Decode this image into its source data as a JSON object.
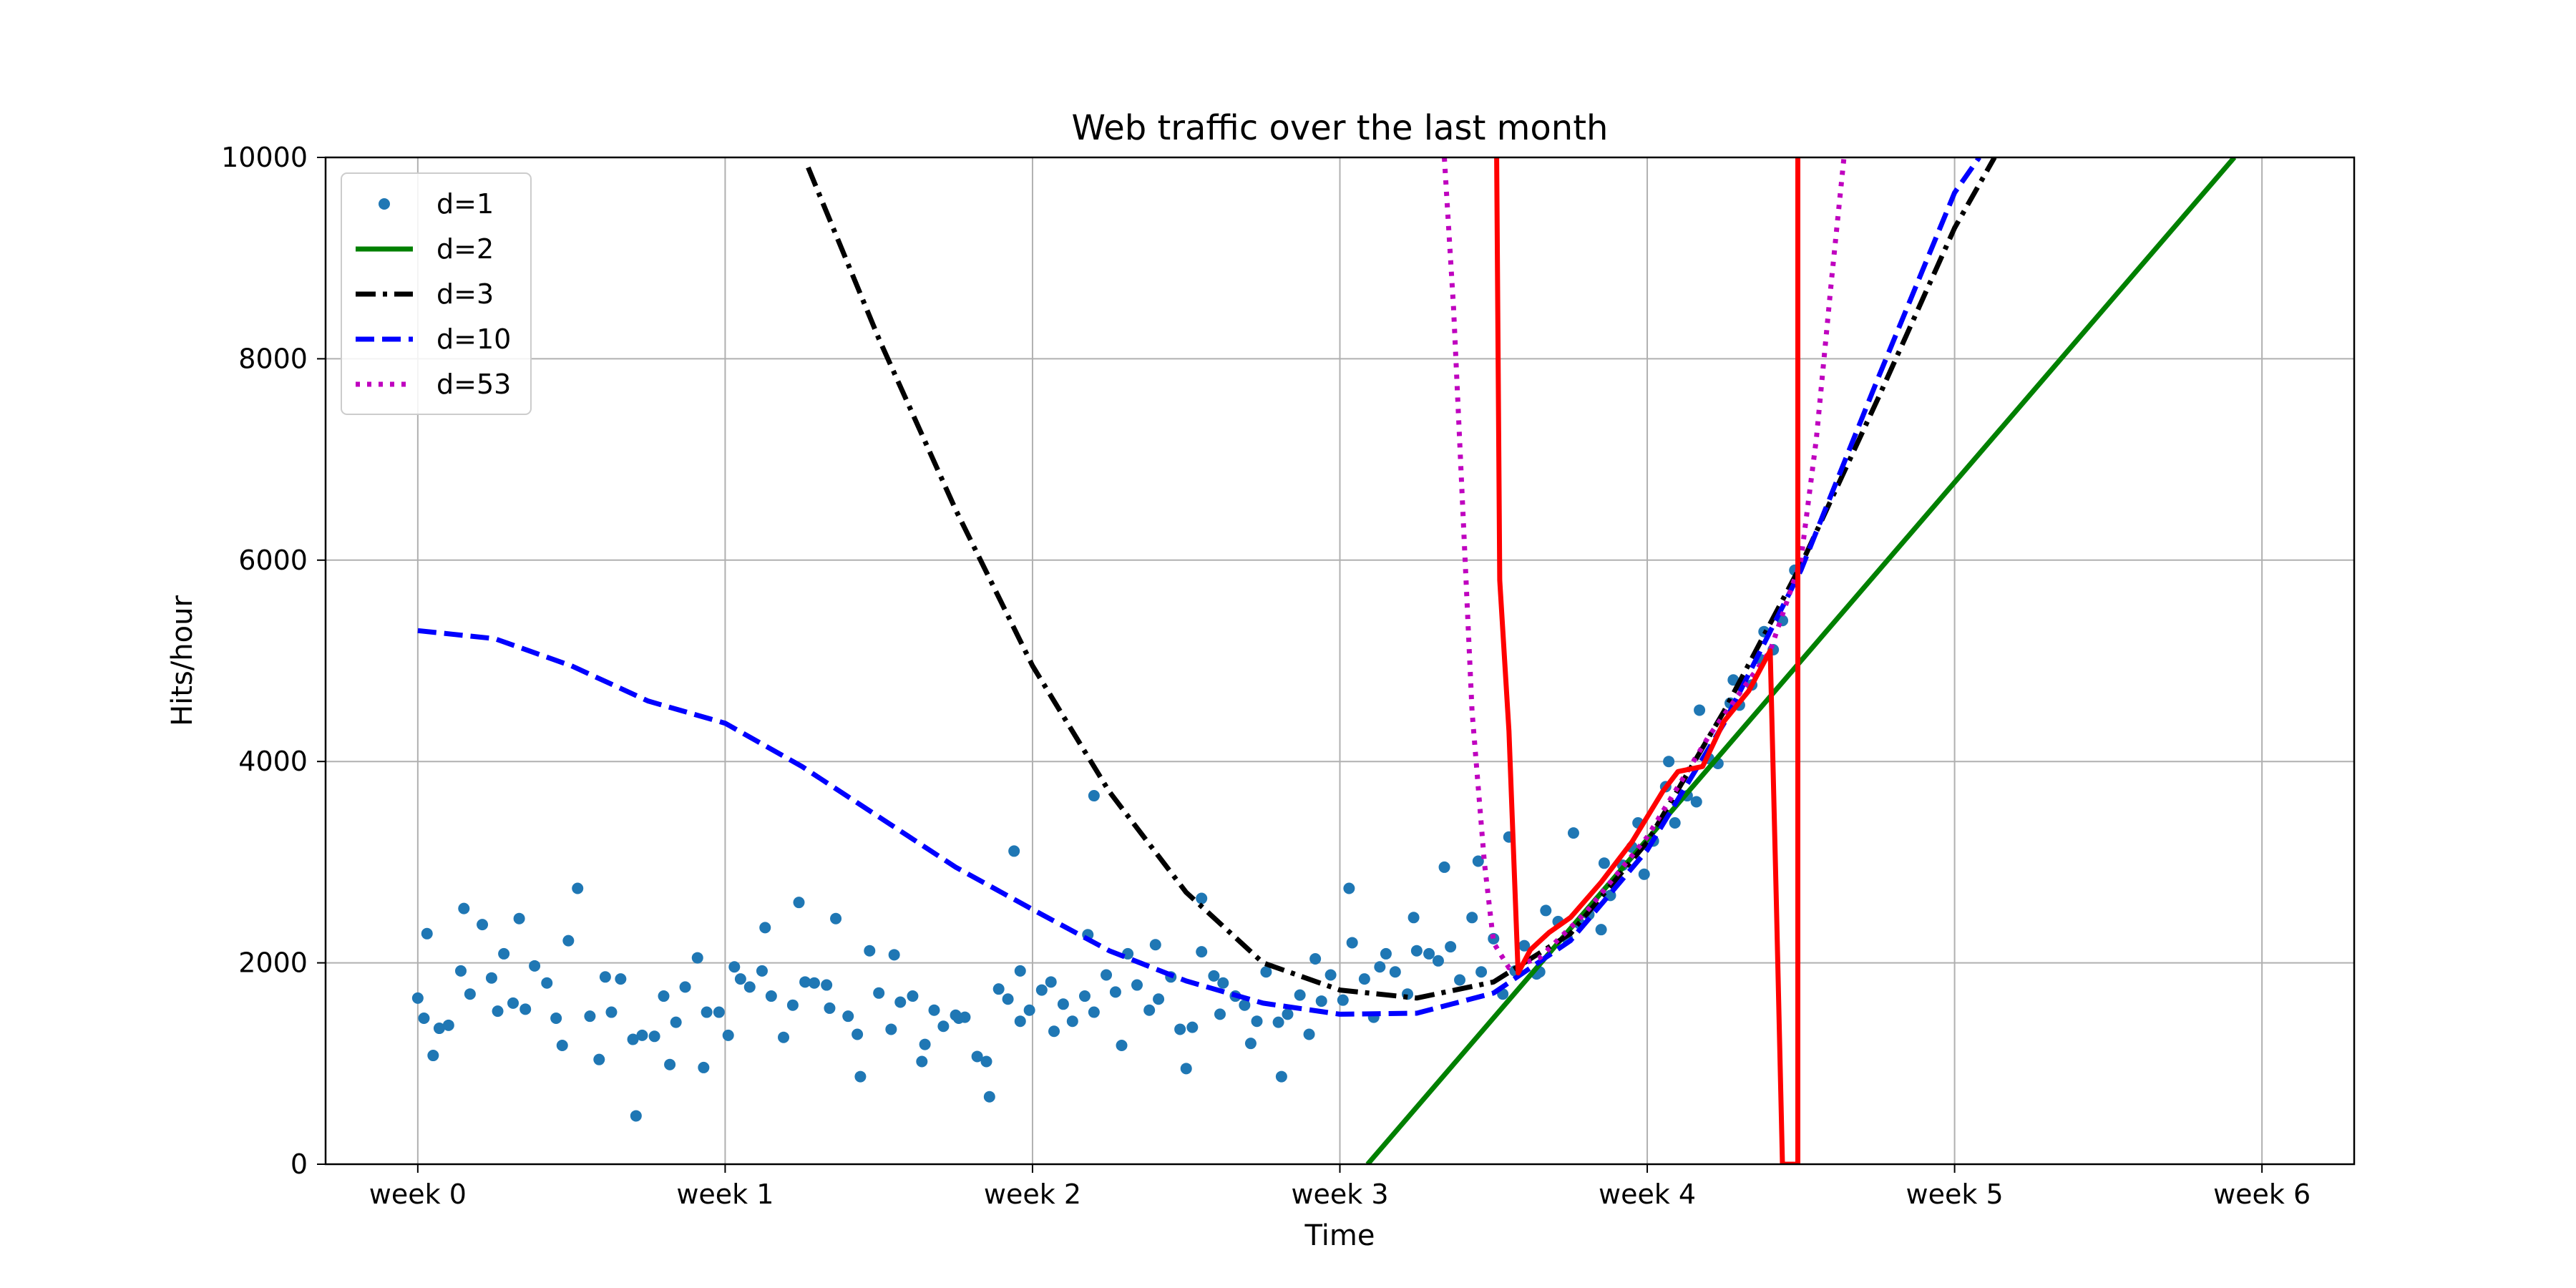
{
  "chart_data": {
    "type": "scatter",
    "title": "Web traffic over the last month",
    "xlabel": "Time",
    "ylabel": "Hits/hour",
    "xlim": [
      -0.3,
      6.3
    ],
    "ylim": [
      0,
      10000
    ],
    "x_ticks": [
      0,
      1,
      2,
      3,
      4,
      5,
      6
    ],
    "x_tick_labels": [
      "week 0",
      "week 1",
      "week 2",
      "week 3",
      "week 4",
      "week 5",
      "week 6"
    ],
    "y_ticks": [
      0,
      2000,
      4000,
      6000,
      8000,
      10000
    ],
    "y_tick_labels": [
      "0",
      "2000",
      "4000",
      "6000",
      "8000",
      "10000"
    ],
    "grid": true,
    "legend_position": "top-left",
    "series": [
      {
        "name": "d=1",
        "kind": "scatter",
        "color": "#1f77b4",
        "description": "hourly traffic samples (estimated, one point every ~4 hours)",
        "points": [
          [
            0.0,
            1650
          ],
          [
            0.03,
            2290
          ],
          [
            0.07,
            1350
          ],
          [
            0.1,
            1380
          ],
          [
            0.14,
            1920
          ],
          [
            0.17,
            1690
          ],
          [
            0.21,
            2380
          ],
          [
            0.24,
            1850
          ],
          [
            0.28,
            2090
          ],
          [
            0.31,
            1600
          ],
          [
            0.35,
            1540
          ],
          [
            0.38,
            1970
          ],
          [
            0.42,
            1800
          ],
          [
            0.45,
            1450
          ],
          [
            0.49,
            2220
          ],
          [
            0.52,
            2740
          ],
          [
            0.56,
            1470
          ],
          [
            0.59,
            1040
          ],
          [
            0.63,
            1510
          ],
          [
            0.66,
            1840
          ],
          [
            0.7,
            1240
          ],
          [
            0.73,
            1280
          ],
          [
            0.77,
            1270
          ],
          [
            0.8,
            1670
          ],
          [
            0.84,
            1410
          ],
          [
            0.87,
            1760
          ],
          [
            0.91,
            2050
          ],
          [
            0.94,
            1510
          ],
          [
            0.98,
            1510
          ],
          [
            1.01,
            1280
          ],
          [
            1.05,
            1840
          ],
          [
            1.08,
            1760
          ],
          [
            1.12,
            1920
          ],
          [
            1.15,
            1670
          ],
          [
            1.19,
            1260
          ],
          [
            1.22,
            1580
          ],
          [
            1.26,
            1810
          ],
          [
            1.29,
            1800
          ],
          [
            1.33,
            1780
          ],
          [
            1.36,
            2440
          ],
          [
            1.4,
            1470
          ],
          [
            1.43,
            1290
          ],
          [
            1.47,
            2120
          ],
          [
            1.5,
            1700
          ],
          [
            1.54,
            1340
          ],
          [
            1.57,
            1610
          ],
          [
            1.61,
            1670
          ],
          [
            1.64,
            1020
          ],
          [
            1.68,
            1530
          ],
          [
            1.71,
            1370
          ],
          [
            1.75,
            1480
          ],
          [
            1.78,
            1460
          ],
          [
            1.82,
            1070
          ],
          [
            1.85,
            1020
          ],
          [
            1.89,
            1740
          ],
          [
            1.92,
            1640
          ],
          [
            1.96,
            1920
          ],
          [
            1.99,
            1530
          ],
          [
            2.03,
            1730
          ],
          [
            2.06,
            1810
          ],
          [
            2.1,
            1590
          ],
          [
            2.13,
            1420
          ],
          [
            2.17,
            1670
          ],
          [
            2.2,
            1510
          ],
          [
            2.24,
            1880
          ],
          [
            2.27,
            1710
          ],
          [
            2.31,
            2090
          ],
          [
            2.34,
            1780
          ],
          [
            2.38,
            1530
          ],
          [
            2.41,
            1640
          ],
          [
            2.45,
            1860
          ],
          [
            2.48,
            1340
          ],
          [
            2.52,
            1360
          ],
          [
            2.55,
            2110
          ],
          [
            2.59,
            1870
          ],
          [
            2.62,
            1800
          ],
          [
            2.66,
            1670
          ],
          [
            2.69,
            1580
          ],
          [
            2.73,
            1420
          ],
          [
            2.76,
            1910
          ],
          [
            2.8,
            1410
          ],
          [
            2.83,
            1490
          ],
          [
            2.87,
            1680
          ],
          [
            2.9,
            1290
          ],
          [
            2.94,
            1620
          ],
          [
            2.97,
            1880
          ],
          [
            3.01,
            1630
          ],
          [
            3.04,
            2200
          ],
          [
            3.08,
            1840
          ],
          [
            3.11,
            1460
          ],
          [
            3.15,
            2090
          ],
          [
            3.18,
            1910
          ],
          [
            3.22,
            1690
          ],
          [
            3.25,
            2120
          ],
          [
            3.29,
            2090
          ],
          [
            3.32,
            2020
          ],
          [
            3.36,
            2160
          ],
          [
            3.39,
            1830
          ],
          [
            3.43,
            2450
          ],
          [
            3.46,
            1910
          ],
          [
            3.5,
            2240
          ],
          [
            3.53,
            1690
          ],
          [
            3.57,
            1920
          ],
          [
            3.6,
            2170
          ],
          [
            3.64,
            1890
          ],
          [
            3.67,
            2520
          ],
          [
            3.71,
            2410
          ],
          [
            3.74,
            2240
          ],
          [
            3.78,
            2390
          ],
          [
            3.81,
            2480
          ],
          [
            3.85,
            2330
          ],
          [
            3.88,
            2670
          ],
          [
            3.92,
            2970
          ],
          [
            3.95,
            3150
          ],
          [
            3.99,
            2880
          ],
          [
            4.02,
            3210
          ],
          [
            4.06,
            3750
          ],
          [
            4.09,
            3390
          ],
          [
            4.13,
            3660
          ],
          [
            4.16,
            3600
          ],
          [
            4.2,
            4030
          ],
          [
            4.23,
            3980
          ],
          [
            4.27,
            4580
          ],
          [
            4.3,
            4560
          ],
          [
            4.34,
            4760
          ],
          [
            4.37,
            5010
          ],
          [
            4.41,
            5110
          ],
          [
            4.44,
            5400
          ],
          [
            0.02,
            1450
          ],
          [
            0.05,
            1080
          ],
          [
            0.15,
            2540
          ],
          [
            0.26,
            1520
          ],
          [
            0.33,
            2440
          ],
          [
            0.47,
            1180
          ],
          [
            0.61,
            1860
          ],
          [
            0.71,
            480
          ],
          [
            0.82,
            990
          ],
          [
            0.93,
            960
          ],
          [
            1.03,
            1960
          ],
          [
            1.13,
            2350
          ],
          [
            1.24,
            2600
          ],
          [
            1.34,
            1550
          ],
          [
            1.44,
            870
          ],
          [
            1.55,
            2080
          ],
          [
            1.65,
            1190
          ],
          [
            1.76,
            1450
          ],
          [
            1.86,
            670
          ],
          [
            1.96,
            1420
          ],
          [
            2.07,
            1320
          ],
          [
            2.18,
            2280
          ],
          [
            2.29,
            1180
          ],
          [
            2.4,
            2180
          ],
          [
            2.5,
            950
          ],
          [
            2.61,
            1490
          ],
          [
            2.71,
            1200
          ],
          [
            2.81,
            870
          ],
          [
            2.92,
            2040
          ],
          [
            3.03,
            2740
          ],
          [
            3.13,
            1960
          ],
          [
            3.24,
            2450
          ],
          [
            3.34,
            2950
          ],
          [
            3.45,
            3010
          ],
          [
            3.55,
            3250
          ],
          [
            3.65,
            1910
          ],
          [
            3.76,
            3290
          ],
          [
            3.86,
            2990
          ],
          [
            3.97,
            3390
          ],
          [
            4.07,
            4000
          ],
          [
            4.17,
            4510
          ],
          [
            4.28,
            4810
          ],
          [
            4.38,
            5290
          ],
          [
            4.48,
            5900
          ],
          [
            1.94,
            3110
          ],
          [
            2.2,
            3660
          ],
          [
            2.55,
            2640
          ]
        ]
      },
      {
        "name": "d=2",
        "kind": "line",
        "color": "#008000",
        "dash": "solid",
        "points": [
          [
            3.09,
            0
          ],
          [
            5.91,
            10000
          ]
        ]
      },
      {
        "name": "d=3",
        "kind": "line",
        "color": "#000000",
        "dash": "dashdot",
        "points": [
          [
            1.27,
            9900
          ],
          [
            1.5,
            8200
          ],
          [
            1.75,
            6500
          ],
          [
            2.0,
            4950
          ],
          [
            2.25,
            3700
          ],
          [
            2.5,
            2700
          ],
          [
            2.75,
            2000
          ],
          [
            3.0,
            1730
          ],
          [
            3.25,
            1650
          ],
          [
            3.5,
            1810
          ],
          [
            3.75,
            2290
          ],
          [
            4.0,
            3200
          ],
          [
            4.25,
            4500
          ],
          [
            4.5,
            5950
          ],
          [
            4.75,
            7600
          ],
          [
            5.0,
            9300
          ],
          [
            5.13,
            10000
          ]
        ]
      },
      {
        "name": "d=10",
        "kind": "line",
        "color": "#0000ff",
        "dash": "dashed",
        "points": [
          [
            0.0,
            5300
          ],
          [
            0.25,
            5220
          ],
          [
            0.5,
            4950
          ],
          [
            0.75,
            4600
          ],
          [
            1.0,
            4380
          ],
          [
            1.25,
            3950
          ],
          [
            1.5,
            3450
          ],
          [
            1.75,
            2950
          ],
          [
            2.0,
            2530
          ],
          [
            2.25,
            2120
          ],
          [
            2.5,
            1820
          ],
          [
            2.75,
            1600
          ],
          [
            3.0,
            1490
          ],
          [
            3.25,
            1500
          ],
          [
            3.5,
            1700
          ],
          [
            3.75,
            2220
          ],
          [
            4.0,
            3120
          ],
          [
            4.25,
            4380
          ],
          [
            4.5,
            5900
          ],
          [
            4.75,
            7800
          ],
          [
            5.0,
            9650
          ],
          [
            5.08,
            10000
          ]
        ]
      },
      {
        "name": "d=53",
        "kind": "line",
        "color": "#bf00bf",
        "dash": "dotted",
        "points": [
          [
            3.34,
            10000
          ],
          [
            3.37,
            8500
          ],
          [
            3.4,
            6500
          ],
          [
            3.43,
            4500
          ],
          [
            3.47,
            3000
          ],
          [
            3.5,
            2200
          ],
          [
            3.55,
            1950
          ],
          [
            3.65,
            2050
          ],
          [
            3.8,
            2500
          ],
          [
            4.0,
            3250
          ],
          [
            4.2,
            4250
          ],
          [
            4.4,
            5100
          ],
          [
            4.5,
            6000
          ],
          [
            4.55,
            7200
          ],
          [
            4.6,
            8800
          ],
          [
            4.64,
            10000
          ]
        ]
      },
      {
        "name": "",
        "kind": "line",
        "color": "#ff0000",
        "dash": "solid",
        "description": "overfit polynomial fit (unlabeled)",
        "points": [
          [
            3.51,
            10000
          ],
          [
            3.52,
            5800
          ],
          [
            3.55,
            4300
          ],
          [
            3.58,
            1900
          ],
          [
            3.62,
            2130
          ],
          [
            3.68,
            2300
          ],
          [
            3.75,
            2450
          ],
          [
            3.85,
            2800
          ],
          [
            3.95,
            3200
          ],
          [
            4.05,
            3700
          ],
          [
            4.1,
            3900
          ],
          [
            4.18,
            3950
          ],
          [
            4.25,
            4400
          ],
          [
            4.33,
            4700
          ],
          [
            4.4,
            5100
          ],
          [
            4.42,
            2600
          ],
          [
            4.44,
            0
          ],
          [
            4.49,
            0
          ],
          [
            4.49,
            10000
          ]
        ]
      }
    ]
  }
}
